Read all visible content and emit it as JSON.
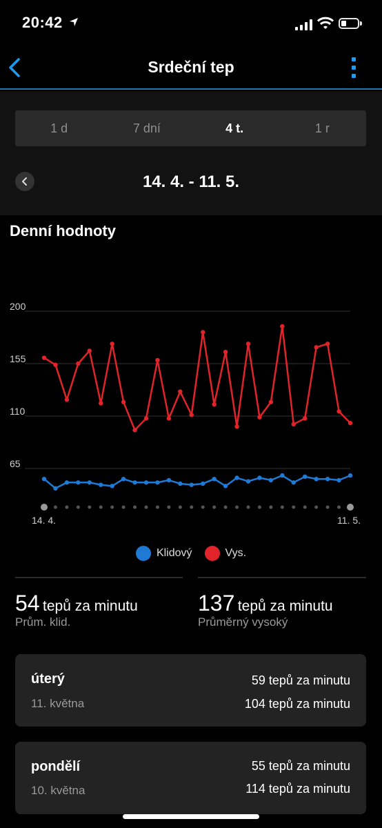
{
  "status_bar": {
    "time": "20:42"
  },
  "header": {
    "title": "Srdeční tep"
  },
  "range_tabs": [
    {
      "label": "1 d",
      "active": false
    },
    {
      "label": "7 dní",
      "active": false
    },
    {
      "label": "4 t.",
      "active": true
    },
    {
      "label": "1 r",
      "active": false
    }
  ],
  "date_range": "14. 4. - 11. 5.",
  "section_title": "Denní hodnoty",
  "chart_data": {
    "type": "line",
    "x": [
      "14. 4.",
      "15. 4.",
      "16. 4.",
      "17. 4.",
      "18. 4.",
      "19. 4.",
      "20. 4.",
      "21. 4.",
      "22. 4.",
      "23. 4.",
      "24. 4.",
      "25. 4.",
      "26. 4.",
      "27. 4.",
      "28. 4.",
      "29. 4.",
      "30. 4.",
      "1. 5.",
      "2. 5.",
      "3. 5.",
      "4. 5.",
      "5. 5.",
      "6. 5.",
      "7. 5.",
      "8. 5.",
      "9. 5.",
      "10. 5.",
      "11. 5."
    ],
    "x_tick_labels": [
      "14. 4.",
      "11. 5."
    ],
    "y_ticks": [
      65,
      110,
      155,
      200
    ],
    "ylim": [
      33,
      205
    ],
    "grid": true,
    "series": [
      {
        "name": "Klidový",
        "color": "#1f7ad6",
        "values": [
          56,
          48,
          53,
          53,
          53,
          51,
          50,
          56,
          53,
          53,
          53,
          55,
          52,
          51,
          52,
          56,
          50,
          57,
          54,
          57,
          55,
          59,
          53,
          58,
          56,
          56,
          55,
          59
        ]
      },
      {
        "name": "Vys.",
        "color": "#e0242a",
        "values": [
          160,
          154,
          124,
          155,
          166,
          121,
          172,
          122,
          98,
          108,
          158,
          108,
          131,
          111,
          182,
          120,
          165,
          101,
          172,
          109,
          122,
          187,
          103,
          108,
          169,
          172,
          114,
          104
        ]
      }
    ]
  },
  "legend": {
    "resting": "Klidový",
    "high": "Vys."
  },
  "stats": {
    "resting": {
      "value": "54",
      "unit": "tepů za minutu",
      "caption": "Prům. klid."
    },
    "high": {
      "value": "137",
      "unit": "tepů za minutu",
      "caption": "Průměrný vysoký"
    }
  },
  "days": [
    {
      "day": "úterý",
      "date": "11. května",
      "resting": "59 tepů za minutu",
      "high": "104 tepů za minutu"
    },
    {
      "day": "pondělí",
      "date": "10. května",
      "resting": "55 tepů za minutu",
      "high": "114 tepů za minutu"
    }
  ]
}
